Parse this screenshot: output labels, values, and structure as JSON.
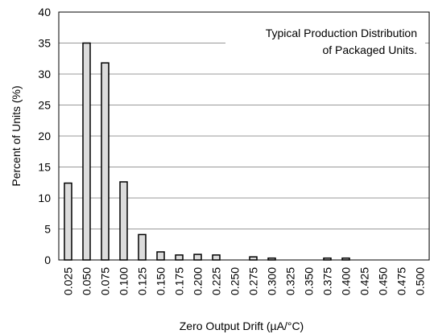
{
  "chart_data": {
    "type": "bar",
    "annotation": [
      "Typical Production Distribution",
      "of Packaged Units."
    ],
    "x_label": "Zero Output Drift (µA/°C)",
    "y_label": "Percent of Units (%)",
    "categories": [
      "0.025",
      "0.050",
      "0.075",
      "0.100",
      "0.125",
      "0.150",
      "0.175",
      "0.200",
      "0.225",
      "0.250",
      "0.275",
      "0.300",
      "0.325",
      "0.350",
      "0.375",
      "0.400",
      "0.425",
      "0.450",
      "0.475",
      "0.500"
    ],
    "values": [
      12.4,
      35,
      31.8,
      12.6,
      4.1,
      1.3,
      0.8,
      0.9,
      0.8,
      0,
      0.5,
      0.3,
      0,
      0,
      0.3,
      0.3,
      0,
      0,
      0,
      0
    ],
    "color": "#dcdcdc",
    "ylim": [
      0,
      40
    ],
    "yticks": [
      0,
      5,
      10,
      15,
      20,
      25,
      30,
      35,
      40
    ],
    "grid": true
  }
}
